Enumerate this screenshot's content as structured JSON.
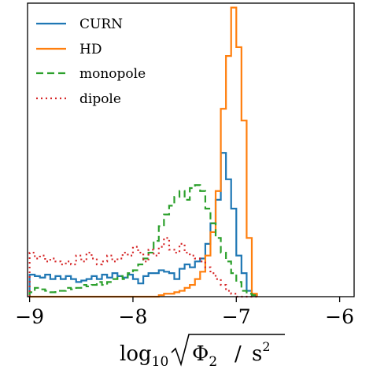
{
  "chart_data": {
    "type": "step-histogram",
    "title": "",
    "xlabel": {
      "prefix": "log",
      "subscript": "10",
      "radicand": "Φ",
      "radicand_sub": "2",
      "slash": "/",
      "unit": "s",
      "unit_sup": "2"
    },
    "ylabel": "",
    "xlim": [
      -9.02,
      -5.86
    ],
    "ylim": [
      0,
      1.0
    ],
    "xticks": [
      -9,
      -8,
      -7,
      -6
    ],
    "xtick_labels": [
      "−9",
      "−8",
      "−7",
      "−6"
    ],
    "y_tick_labels_shown": false,
    "legend_position": "top-left",
    "bins": {
      "start": -9.0,
      "width": 0.05,
      "count": 44
    },
    "series": [
      {
        "name": "CURN",
        "color": "#1f77b4",
        "linestyle": "solid",
        "values": [
          0.075,
          0.07,
          0.065,
          0.075,
          0.06,
          0.07,
          0.06,
          0.07,
          0.06,
          0.05,
          0.055,
          0.06,
          0.07,
          0.06,
          0.075,
          0.065,
          0.08,
          0.07,
          0.065,
          0.075,
          0.06,
          0.045,
          0.07,
          0.08,
          0.08,
          0.09,
          0.085,
          0.08,
          0.06,
          0.095,
          0.11,
          0.1,
          0.12,
          0.13,
          0.18,
          0.25,
          0.33,
          0.49,
          0.4,
          0.3,
          0.14,
          0.08,
          0.02,
          0.005
        ]
      },
      {
        "name": "HD",
        "color": "#ff7f0e",
        "linestyle": "solid",
        "values": [
          0.0,
          0.0,
          0.0,
          0.0,
          0.0,
          0.0,
          0.0,
          0.0,
          0.0,
          0.0,
          0.0,
          0.0,
          0.0,
          0.0,
          0.0,
          0.0,
          0.0,
          0.0,
          0.0,
          0.0,
          0.0,
          0.0,
          0.0,
          0.0,
          0.0,
          0.005,
          0.01,
          0.01,
          0.015,
          0.02,
          0.03,
          0.04,
          0.06,
          0.085,
          0.14,
          0.22,
          0.36,
          0.64,
          0.82,
          0.985,
          0.85,
          0.6,
          0.2,
          0.01
        ]
      },
      {
        "name": "monopole",
        "color": "#2ca02c",
        "linestyle": "dashed",
        "values": [
          0.015,
          0.03,
          0.025,
          0.02,
          0.015,
          0.02,
          0.02,
          0.03,
          0.025,
          0.03,
          0.04,
          0.035,
          0.04,
          0.05,
          0.04,
          0.05,
          0.06,
          0.07,
          0.06,
          0.08,
          0.09,
          0.11,
          0.13,
          0.15,
          0.19,
          0.24,
          0.28,
          0.31,
          0.34,
          0.36,
          0.33,
          0.37,
          0.38,
          0.36,
          0.3,
          0.25,
          0.2,
          0.15,
          0.12,
          0.08,
          0.05,
          0.02,
          0.01,
          0.005
        ]
      },
      {
        "name": "dipole",
        "color": "#d62728",
        "linestyle": "dotted",
        "values": [
          0.15,
          0.13,
          0.14,
          0.12,
          0.13,
          0.12,
          0.11,
          0.12,
          0.11,
          0.14,
          0.12,
          0.15,
          0.13,
          0.11,
          0.12,
          0.14,
          0.12,
          0.13,
          0.15,
          0.14,
          0.17,
          0.15,
          0.12,
          0.16,
          0.14,
          0.17,
          0.2,
          0.16,
          0.15,
          0.18,
          0.15,
          0.14,
          0.13,
          0.12,
          0.1,
          0.08,
          0.06,
          0.04,
          0.02,
          0.01,
          0.0,
          0.0,
          0.0,
          0.0
        ]
      }
    ]
  }
}
